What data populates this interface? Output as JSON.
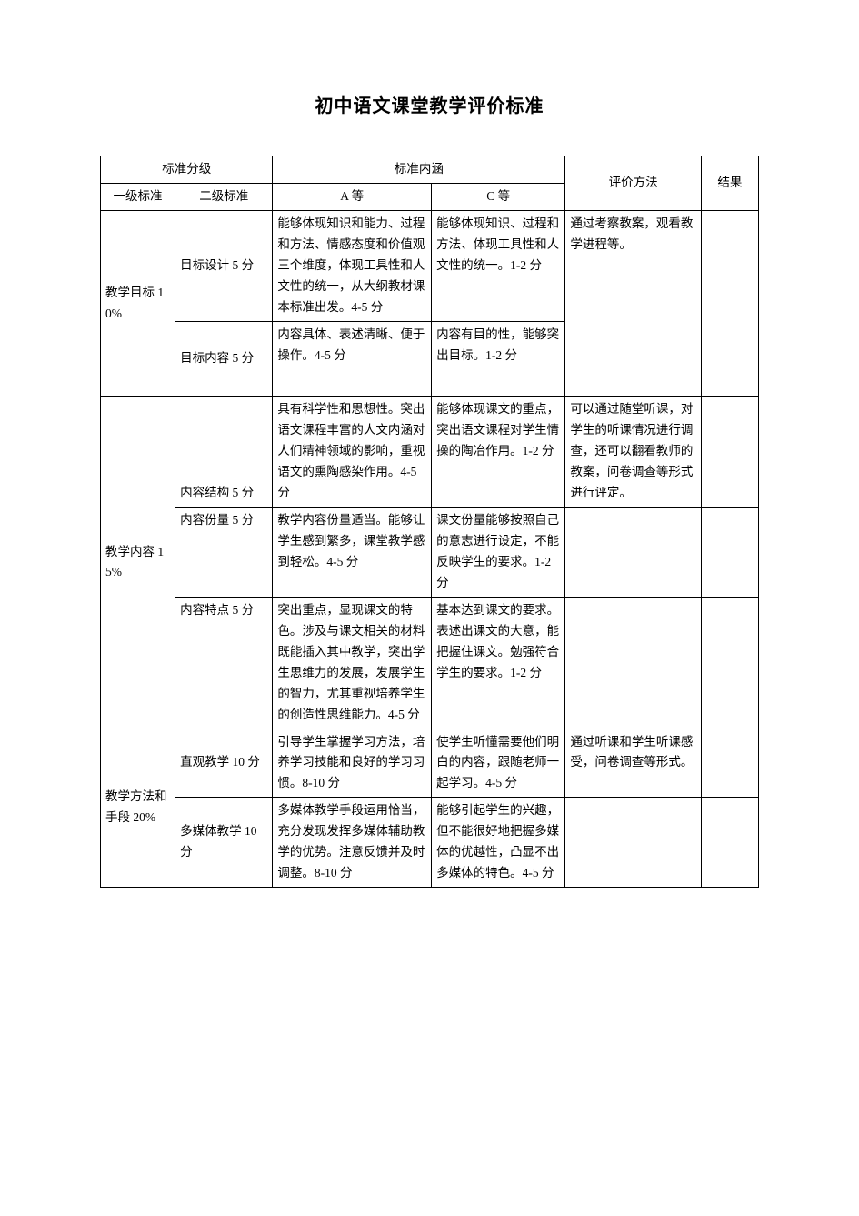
{
  "title": "初中语文课堂教学评价标准",
  "headers": {
    "group1": "标准分级",
    "group2": "标准内涵",
    "method": "评价方法",
    "result": "结果",
    "l1": "一级标准",
    "l2": "二级标准",
    "colA": "A 等",
    "colC": "C 等"
  },
  "sections": [
    {
      "l1": "教学目标 10%",
      "method": "通过考察教案，观看教学进程等。",
      "rows": [
        {
          "l2": "目标设计 5 分",
          "a": "能够体现知识和能力、过程和方法、情感态度和价值观三个维度，体现工具性和人文性的统一，从大纲教材课本标准出发。4-5 分",
          "c": "能够体现知识、过程和方法、体现工具性和人文性的统一。1-2 分"
        },
        {
          "l2": "目标内容 5 分",
          "a": "内容具体、表述清晰、便于操作。4-5 分",
          "c": "内容有目的性，能够突出目标。1-2 分"
        }
      ]
    },
    {
      "l1": "教学内容 15%",
      "method": "可以通过随堂听课，对学生的听课情况进行调查，还可以翻看教师的教案，问卷调查等形式进行评定。",
      "rows": [
        {
          "l2": "内容结构 5 分",
          "a": "具有科学性和思想性。突出语文课程丰富的人文内涵对人们精神领域的影响，重视语文的熏陶感染作用。4-5 分",
          "c": "能够体现课文的重点，突出语文课程对学生情操的陶冶作用。1-2 分"
        },
        {
          "l2": "内容份量 5 分",
          "a": "教学内容份量适当。能够让学生感到繁多，课堂教学感到轻松。4-5 分",
          "c": "课文份量能够按照自己的意志进行设定，不能反映学生的要求。1-2 分"
        },
        {
          "l2": "内容特点 5 分",
          "a": "突出重点，显现课文的特色。涉及与课文相关的材料既能插入其中教学，突出学生思维力的发展，发展学生的智力，尤其重视培养学生的创造性思维能力。4-5 分",
          "c": "基本达到课文的要求。表述出课文的大意，能把握住课文。勉强符合学生的要求。1-2 分"
        }
      ]
    },
    {
      "l1": "教学方法和手段 20%",
      "method": "通过听课和学生听课感受，问卷调查等形式。",
      "rows": [
        {
          "l2": "直观教学 10 分",
          "a": "引导学生掌握学习方法，培养学习技能和良好的学习习惯。8-10 分",
          "c": "使学生听懂需要他们明白的内容，跟随老师一起学习。4-5 分"
        },
        {
          "l2": "多媒体教学 10 分",
          "a": "多媒体教学手段运用恰当，充分发现发挥多媒体辅助教学的优势。注意反馈并及时调整。8-10 分",
          "c": "能够引起学生的兴趣，但不能很好地把握多媒体的优越性，凸显不出多媒体的特色。4-5 分"
        }
      ]
    }
  ]
}
